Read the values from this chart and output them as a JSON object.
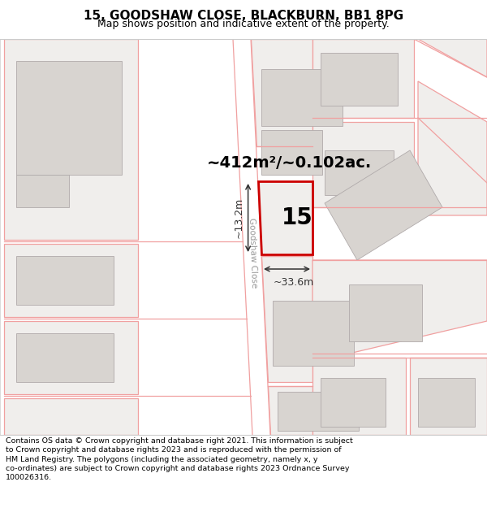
{
  "title_line1": "15, GOODSHAW CLOSE, BLACKBURN, BB1 8PG",
  "title_line2": "Map shows position and indicative extent of the property.",
  "footer_text": "Contains OS data © Crown copyright and database right 2021. This information is subject to Crown copyright and database rights 2023 and is reproduced with the permission of HM Land Registry. The polygons (including the associated geometry, namely x, y co-ordinates) are subject to Crown copyright and database rights 2023 Ordnance Survey 100026316.",
  "area_label": "~412m²/~0.102ac.",
  "property_number": "15",
  "dim_width": "~33.6m",
  "dim_height": "~13.2m",
  "road_label": "Goodshaw Close",
  "map_bg": "#ffffff",
  "plot_fill": "#f0eeec",
  "bldg_fill": "#d8d4d0",
  "bldg_edge": "#b0aaaa",
  "plot_edge_light": "#f0a0a0",
  "plot_edge_red": "#cc0000",
  "subject_fill": "#f0eeec",
  "title_fontsize": 11,
  "subtitle_fontsize": 9,
  "footer_fontsize": 6.8,
  "area_fontsize": 14,
  "num_fontsize": 20,
  "dim_fontsize": 9
}
